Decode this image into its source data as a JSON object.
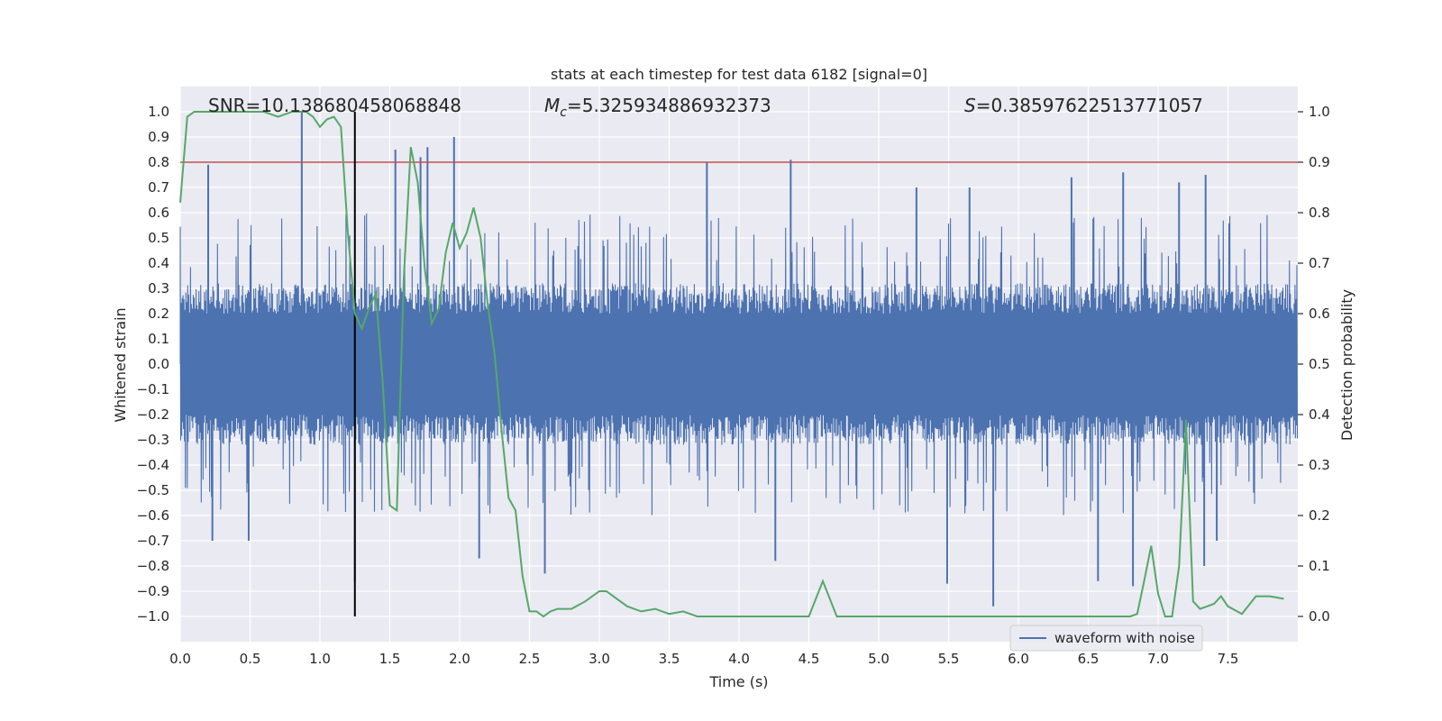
{
  "chart_data": {
    "type": "line",
    "title": "stats at each timestep for test data 6182 [signal=0]",
    "xlabel": "Time (s)",
    "ylabel_left": "Whitened strain",
    "ylabel_right": "Detection probability",
    "xlim": [
      0.0,
      8.0
    ],
    "ylim_left": [
      -1.1,
      1.1
    ],
    "ylim_right": [
      -0.05,
      1.05
    ],
    "x_ticks": [
      "0.0",
      "0.5",
      "1.0",
      "1.5",
      "2.0",
      "2.5",
      "3.0",
      "3.5",
      "4.0",
      "4.5",
      "5.0",
      "5.5",
      "6.0",
      "6.5",
      "7.0",
      "7.5"
    ],
    "x_tick_values": [
      0.0,
      0.5,
      1.0,
      1.5,
      2.0,
      2.5,
      3.0,
      3.5,
      4.0,
      4.5,
      5.0,
      5.5,
      6.0,
      6.5,
      7.0,
      7.5
    ],
    "y_left_ticks": [
      "1.0",
      "0.9",
      "0.8",
      "0.7",
      "0.6",
      "0.5",
      "0.4",
      "0.3",
      "0.2",
      "0.1",
      "0.0",
      "−0.1",
      "−0.2",
      "−0.3",
      "−0.4",
      "−0.5",
      "−0.6",
      "−0.7",
      "−0.8",
      "−0.9",
      "−1.0"
    ],
    "y_left_tick_values": [
      1.0,
      0.9,
      0.8,
      0.7,
      0.6,
      0.5,
      0.4,
      0.3,
      0.2,
      0.1,
      0.0,
      -0.1,
      -0.2,
      -0.3,
      -0.4,
      -0.5,
      -0.6,
      -0.7,
      -0.8,
      -0.9,
      -1.0
    ],
    "y_right_ticks": [
      "1.0",
      "0.9",
      "0.8",
      "0.7",
      "0.6",
      "0.5",
      "0.4",
      "0.3",
      "0.2",
      "0.1",
      "0.0"
    ],
    "y_right_tick_values": [
      1.0,
      0.9,
      0.8,
      0.7,
      0.6,
      0.5,
      0.4,
      0.3,
      0.2,
      0.1,
      0.0
    ],
    "grid": true,
    "legend": {
      "placement": "lower-right",
      "entries": [
        "waveform with noise"
      ]
    },
    "annotations": {
      "snr": "SNR=10.138680458068848",
      "mc_symbol": "M",
      "mc_sub": "c",
      "mc_value": "=5.325934886932373",
      "s_symbol": "S",
      "s_value": "=0.38597622513771057"
    },
    "series": [
      {
        "name": "waveform with noise",
        "axis": "left",
        "color": "#4c72b0",
        "description_of_envelope": "dense noise, typical band ±0.4",
        "peaks_pos": [
          [
            0.87,
            1.0
          ],
          [
            0.2,
            0.79
          ],
          [
            1.54,
            0.85
          ],
          [
            1.72,
            0.82
          ],
          [
            1.77,
            0.86
          ],
          [
            1.96,
            0.9
          ],
          [
            3.77,
            0.8
          ],
          [
            4.37,
            0.81
          ],
          [
            6.38,
            0.74
          ],
          [
            6.75,
            0.76
          ],
          [
            7.34,
            0.75
          ],
          [
            7.15,
            0.72
          ],
          [
            5.27,
            0.7
          ],
          [
            5.65,
            0.7
          ]
        ],
        "peaks_neg": [
          [
            0.23,
            -0.7
          ],
          [
            0.49,
            -0.7
          ],
          [
            1.25,
            -0.86
          ],
          [
            2.14,
            -0.77
          ],
          [
            2.61,
            -0.83
          ],
          [
            4.26,
            -0.78
          ],
          [
            5.49,
            -0.87
          ],
          [
            5.82,
            -0.96
          ],
          [
            6.57,
            -0.86
          ],
          [
            6.82,
            -0.88
          ],
          [
            7.33,
            -0.8
          ],
          [
            7.42,
            -0.7
          ]
        ]
      },
      {
        "name": "detection probability",
        "axis": "right",
        "color": "#55a868",
        "x": [
          0.0,
          0.05,
          0.1,
          0.15,
          0.2,
          0.3,
          0.4,
          0.5,
          0.6,
          0.7,
          0.8,
          0.85,
          0.9,
          0.95,
          1.0,
          1.05,
          1.1,
          1.15,
          1.2,
          1.25,
          1.3,
          1.35,
          1.4,
          1.45,
          1.5,
          1.55,
          1.6,
          1.65,
          1.7,
          1.75,
          1.8,
          1.85,
          1.9,
          1.95,
          2.0,
          2.05,
          2.1,
          2.15,
          2.2,
          2.25,
          2.3,
          2.35,
          2.4,
          2.45,
          2.5,
          2.55,
          2.6,
          2.65,
          2.7,
          2.8,
          2.9,
          3.0,
          3.05,
          3.1,
          3.2,
          3.3,
          3.4,
          3.5,
          3.6,
          3.7,
          3.8,
          3.9,
          4.0,
          4.1,
          4.2,
          4.3,
          4.4,
          4.5,
          4.6,
          4.7,
          4.75,
          4.8,
          4.9,
          5.0,
          5.1,
          5.2,
          5.3,
          5.4,
          5.5,
          5.6,
          5.7,
          5.8,
          5.9,
          6.0,
          6.1,
          6.2,
          6.3,
          6.4,
          6.5,
          6.6,
          6.7,
          6.8,
          6.85,
          6.9,
          6.95,
          7.0,
          7.05,
          7.1,
          7.15,
          7.2,
          7.25,
          7.3,
          7.35,
          7.4,
          7.45,
          7.5,
          7.6,
          7.7,
          7.8,
          7.9
        ],
        "values": [
          0.82,
          0.99,
          1.0,
          1.0,
          1.0,
          1.0,
          1.0,
          1.0,
          1.0,
          0.99,
          1.0,
          1.0,
          1.0,
          0.99,
          0.97,
          0.985,
          0.99,
          0.97,
          0.76,
          0.6,
          0.57,
          0.61,
          0.64,
          0.46,
          0.22,
          0.21,
          0.67,
          0.93,
          0.86,
          0.69,
          0.58,
          0.61,
          0.72,
          0.78,
          0.73,
          0.76,
          0.81,
          0.75,
          0.62,
          0.52,
          0.37,
          0.235,
          0.21,
          0.08,
          0.01,
          0.01,
          0.0,
          0.01,
          0.015,
          0.015,
          0.03,
          0.05,
          0.05,
          0.04,
          0.02,
          0.01,
          0.015,
          0.005,
          0.01,
          0.0,
          0.0,
          0.0,
          0.0,
          0.0,
          0.0,
          0.0,
          0.0,
          0.0,
          0.07,
          0.0,
          0.0,
          0.0,
          0.0,
          0.0,
          0.0,
          0.0,
          0.0,
          0.0,
          0.0,
          0.0,
          0.0,
          0.0,
          0.0,
          0.0,
          0.0,
          0.0,
          0.0,
          0.0,
          0.0,
          0.0,
          0.0,
          0.0,
          0.005,
          0.07,
          0.14,
          0.045,
          0.0,
          0.0,
          0.1,
          0.39,
          0.03,
          0.015,
          0.02,
          0.025,
          0.04,
          0.02,
          0.005,
          0.04,
          0.04,
          0.035
        ]
      }
    ],
    "threshold_line": {
      "axis": "right",
      "value": 0.9,
      "color": "#c44e52"
    },
    "vertical_marker": {
      "x": 1.25,
      "y_from": -1.0,
      "y_to": 1.0,
      "color": "#000000"
    }
  }
}
